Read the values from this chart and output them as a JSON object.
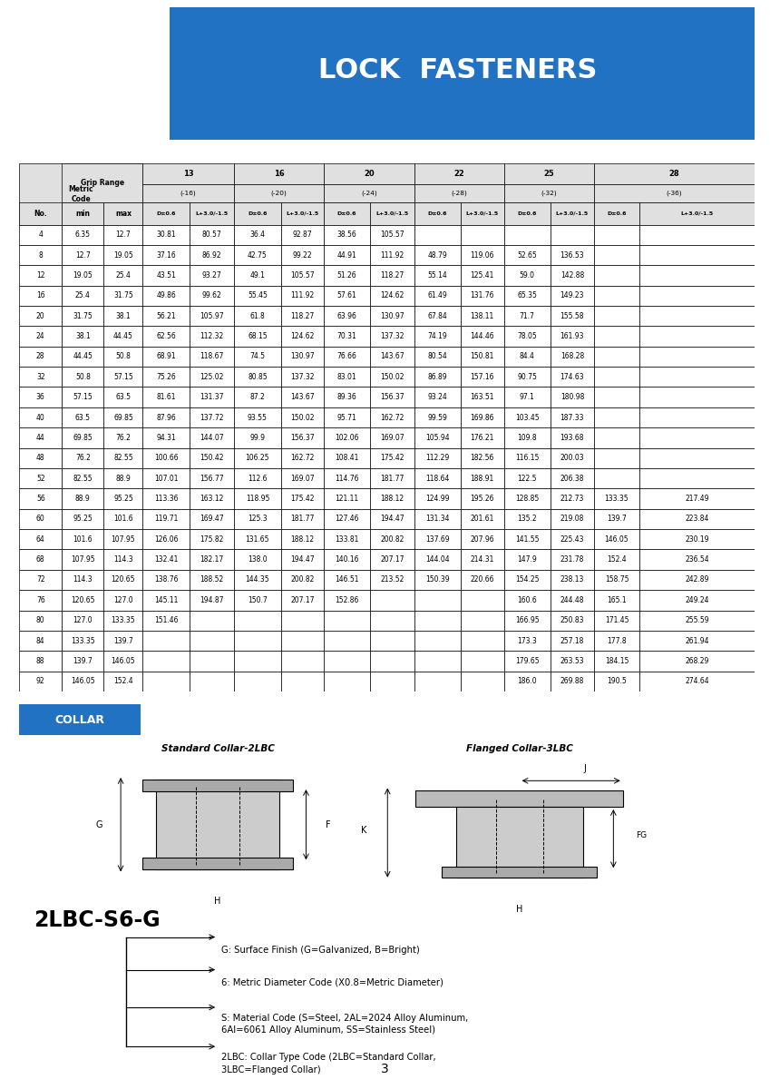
{
  "title": "LOCK  FASTENERS",
  "title_bg": "#2272C3",
  "title_color": "white",
  "rows": [
    [
      4,
      6.35,
      12.7,
      30.81,
      80.57,
      36.4,
      92.87,
      38.56,
      105.57,
      "",
      "",
      "",
      "",
      "",
      ""
    ],
    [
      8,
      12.7,
      19.05,
      37.16,
      86.92,
      42.75,
      99.22,
      44.91,
      111.92,
      48.79,
      119.06,
      52.65,
      136.53,
      "",
      ""
    ],
    [
      12,
      19.05,
      25.4,
      43.51,
      93.27,
      49.1,
      105.57,
      51.26,
      118.27,
      55.14,
      125.41,
      59.0,
      142.88,
      "",
      ""
    ],
    [
      16,
      25.4,
      31.75,
      49.86,
      99.62,
      55.45,
      111.92,
      57.61,
      124.62,
      61.49,
      131.76,
      65.35,
      149.23,
      "",
      ""
    ],
    [
      20,
      31.75,
      38.1,
      56.21,
      105.97,
      61.8,
      118.27,
      63.96,
      130.97,
      67.84,
      138.11,
      71.7,
      155.58,
      "",
      ""
    ],
    [
      24,
      38.1,
      44.45,
      62.56,
      112.32,
      68.15,
      124.62,
      70.31,
      137.32,
      74.19,
      144.46,
      78.05,
      161.93,
      "",
      ""
    ],
    [
      28,
      44.45,
      50.8,
      68.91,
      118.67,
      74.5,
      130.97,
      76.66,
      143.67,
      80.54,
      150.81,
      84.4,
      168.28,
      "",
      ""
    ],
    [
      32,
      50.8,
      57.15,
      75.26,
      125.02,
      80.85,
      137.32,
      83.01,
      150.02,
      86.89,
      157.16,
      90.75,
      174.63,
      "",
      ""
    ],
    [
      36,
      57.15,
      63.5,
      81.61,
      131.37,
      87.2,
      143.67,
      89.36,
      156.37,
      93.24,
      163.51,
      97.1,
      180.98,
      "",
      ""
    ],
    [
      40,
      63.5,
      69.85,
      87.96,
      137.72,
      93.55,
      150.02,
      95.71,
      162.72,
      99.59,
      169.86,
      103.45,
      187.33,
      "",
      ""
    ],
    [
      44,
      69.85,
      76.2,
      94.31,
      144.07,
      99.9,
      156.37,
      102.06,
      169.07,
      105.94,
      176.21,
      109.8,
      193.68,
      "",
      ""
    ],
    [
      48,
      76.2,
      82.55,
      100.66,
      150.42,
      106.25,
      162.72,
      108.41,
      175.42,
      112.29,
      182.56,
      116.15,
      200.03,
      "",
      ""
    ],
    [
      52,
      82.55,
      88.9,
      107.01,
      156.77,
      112.6,
      169.07,
      114.76,
      181.77,
      118.64,
      188.91,
      122.5,
      206.38,
      "",
      ""
    ],
    [
      56,
      88.9,
      95.25,
      113.36,
      163.12,
      118.95,
      175.42,
      121.11,
      188.12,
      124.99,
      195.26,
      128.85,
      212.73,
      133.35,
      217.49
    ],
    [
      60,
      95.25,
      101.6,
      119.71,
      169.47,
      125.3,
      181.77,
      127.46,
      194.47,
      131.34,
      201.61,
      135.2,
      219.08,
      139.7,
      223.84
    ],
    [
      64,
      101.6,
      107.95,
      126.06,
      175.82,
      131.65,
      188.12,
      133.81,
      200.82,
      137.69,
      207.96,
      141.55,
      225.43,
      146.05,
      230.19
    ],
    [
      68,
      107.95,
      114.3,
      132.41,
      182.17,
      138.0,
      194.47,
      140.16,
      207.17,
      144.04,
      214.31,
      147.9,
      231.78,
      152.4,
      236.54
    ],
    [
      72,
      114.3,
      120.65,
      138.76,
      188.52,
      144.35,
      200.82,
      146.51,
      213.52,
      150.39,
      220.66,
      154.25,
      238.13,
      158.75,
      242.89
    ],
    [
      76,
      120.65,
      127.0,
      145.11,
      194.87,
      150.7,
      207.17,
      152.86,
      "",
      "",
      "",
      160.6,
      244.48,
      165.1,
      249.24
    ],
    [
      80,
      127.0,
      133.35,
      151.46,
      "",
      "",
      "",
      "",
      "",
      "",
      "",
      166.95,
      250.83,
      171.45,
      255.59
    ],
    [
      84,
      133.35,
      139.7,
      "",
      "",
      "",
      "",
      "",
      "",
      "",
      "",
      173.3,
      257.18,
      177.8,
      261.94
    ],
    [
      88,
      139.7,
      146.05,
      "",
      "",
      "",
      "",
      "",
      "",
      "",
      "",
      179.65,
      263.53,
      184.15,
      268.29
    ],
    [
      92,
      146.05,
      152.4,
      "",
      "",
      "",
      "",
      "",
      "",
      "",
      "",
      186.0,
      269.88,
      190.5,
      274.64
    ]
  ],
  "collar_label": "COLLAR",
  "collar_label_bg": "#2272C3",
  "collar_label_color": "white",
  "std_collar_label": "Standard Collar-2LBC",
  "flanged_collar_label": "Flanged Collar-3LBC",
  "part_code": "2LBC-S6-G",
  "part_lines": [
    "G: Surface Finish (G=Galvanized, B=Bright)",
    "6: Metric Diameter Code (X0.8=Metric Diameter)",
    "S: Material Code (S=Steel, 2AL=2024 Alloy Aluminum,\n6Al=6061 Alloy Aluminum, SS=Stainless Steel)",
    "2LBC: Collar Type Code (2LBC=Standard Collar,\n3LBC=Flanged Collar)"
  ],
  "page_number": "3"
}
